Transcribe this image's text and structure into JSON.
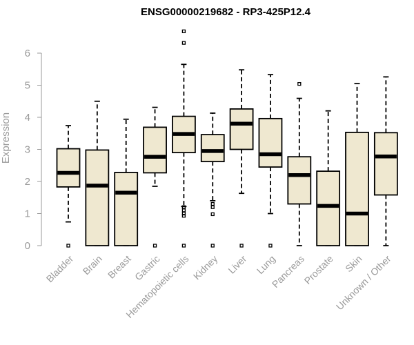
{
  "chart_data": {
    "type": "box",
    "title": "ENSG00000219682 - RP3-425P12.4",
    "ylabel": "Expression",
    "xlabel": "",
    "ylim": [
      0,
      6.8
    ],
    "yticks": [
      0,
      1,
      2,
      3,
      4,
      5,
      6
    ],
    "box_fill": "#efe8d0",
    "categories": [
      "Bladder",
      "Brain",
      "Breast",
      "Gastric",
      "Hematopoietic cells",
      "Kidney",
      "Liver",
      "Lung",
      "Pancreas",
      "Prostate",
      "Skin",
      "Unknown / Other"
    ],
    "boxes": [
      {
        "q1": 1.83,
        "median": 2.27,
        "q3": 3.02,
        "whisker_low": 0.74,
        "whisker_high": 3.74,
        "outliers": [
          0.0
        ]
      },
      {
        "q1": 0.0,
        "median": 1.87,
        "q3": 2.98,
        "whisker_low": 0.0,
        "whisker_high": 4.5,
        "outliers": []
      },
      {
        "q1": 0.0,
        "median": 1.65,
        "q3": 2.28,
        "whisker_low": 0.0,
        "whisker_high": 3.94,
        "outliers": []
      },
      {
        "q1": 2.27,
        "median": 2.77,
        "q3": 3.69,
        "whisker_low": 1.85,
        "whisker_high": 4.31,
        "outliers": [
          0.0
        ]
      },
      {
        "q1": 2.9,
        "median": 3.48,
        "q3": 4.03,
        "whisker_low": 1.22,
        "whisker_high": 5.65,
        "outliers": [
          0.0,
          0.93,
          1.0,
          1.1,
          1.2,
          6.32,
          6.68
        ]
      },
      {
        "q1": 2.62,
        "median": 2.95,
        "q3": 3.46,
        "whisker_low": 1.4,
        "whisker_high": 4.13,
        "outliers": [
          0.0,
          0.98,
          1.2,
          1.3
        ]
      },
      {
        "q1": 3.0,
        "median": 3.8,
        "q3": 4.26,
        "whisker_low": 1.63,
        "whisker_high": 5.48,
        "outliers": [
          0.0
        ]
      },
      {
        "q1": 2.45,
        "median": 2.85,
        "q3": 3.96,
        "whisker_low": 1.0,
        "whisker_high": 5.33,
        "outliers": [
          0.0
        ]
      },
      {
        "q1": 1.3,
        "median": 2.2,
        "q3": 2.77,
        "whisker_low": 0.0,
        "whisker_high": 4.59,
        "outliers": [
          5.04
        ]
      },
      {
        "q1": 0.0,
        "median": 1.24,
        "q3": 2.32,
        "whisker_low": 0.0,
        "whisker_high": 4.2,
        "outliers": []
      },
      {
        "q1": 0.0,
        "median": 1.0,
        "q3": 3.53,
        "whisker_low": 0.0,
        "whisker_high": 5.05,
        "outliers": []
      },
      {
        "q1": 1.58,
        "median": 2.78,
        "q3": 3.52,
        "whisker_low": 0.0,
        "whisker_high": 5.26,
        "outliers": []
      }
    ]
  }
}
